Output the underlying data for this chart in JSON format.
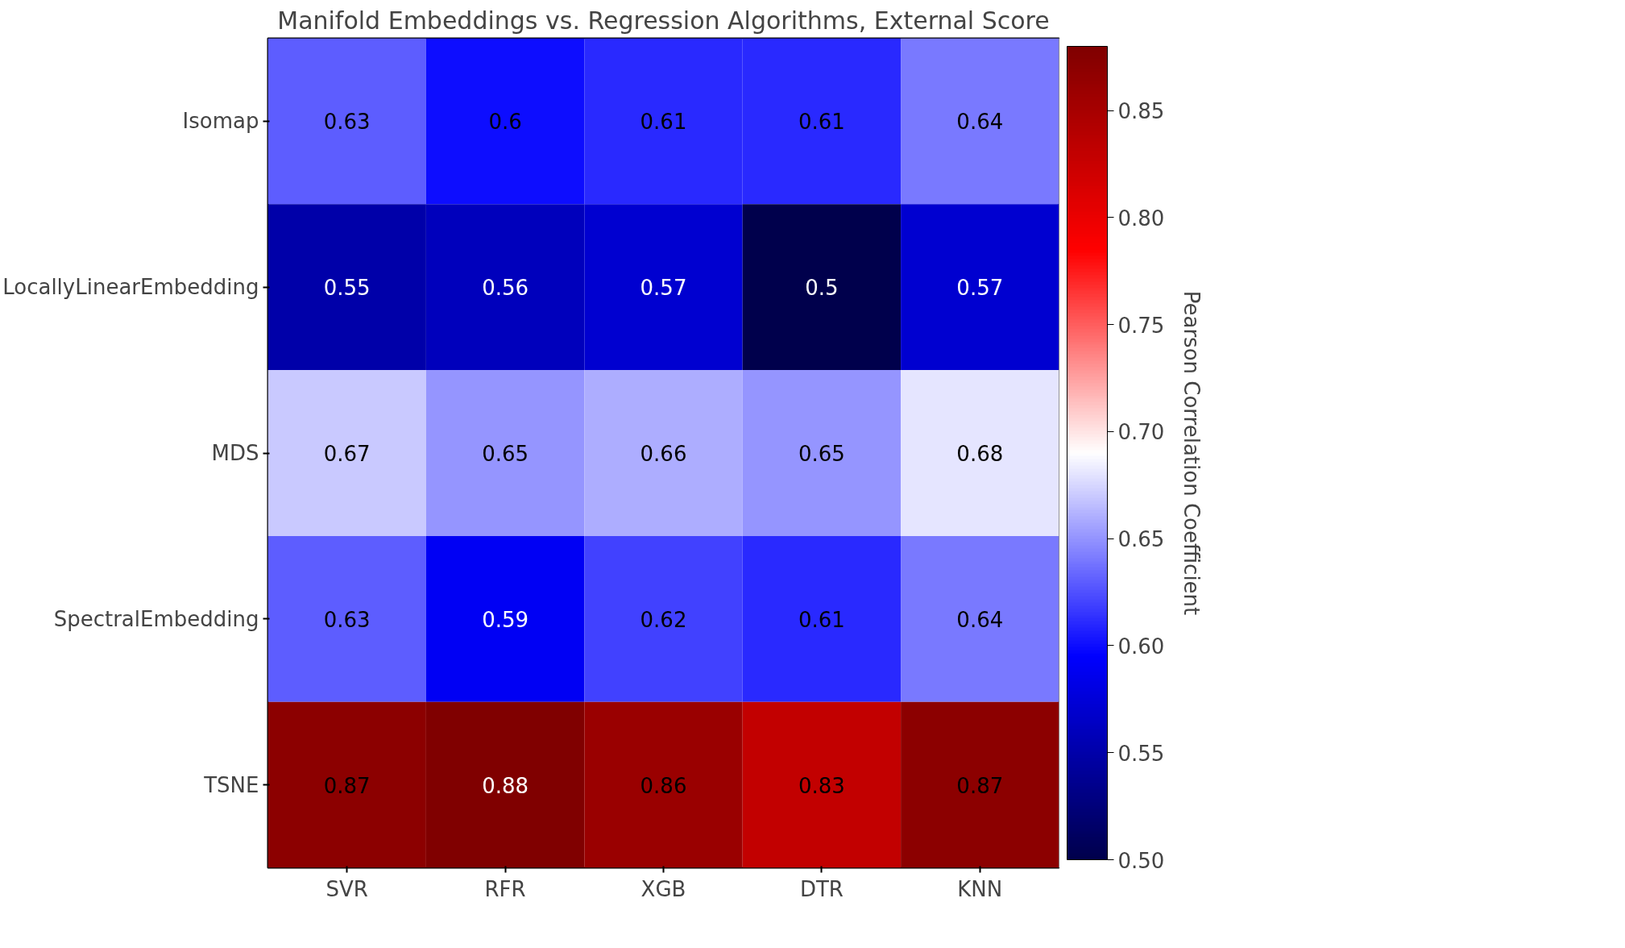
{
  "chart_data": {
    "type": "heatmap",
    "title": "Manifold Embeddings vs. Regression Algorithms, External Score",
    "categories": [
      "SVR",
      "RFR",
      "XGB",
      "DTR",
      "KNN"
    ],
    "y_categories": [
      "Isomap",
      "LocallyLinearEmbedding",
      "MDS",
      "SpectralEmbedding",
      "TSNE"
    ],
    "cells": [
      [
        0.63,
        0.6,
        0.61,
        0.61,
        0.64
      ],
      [
        0.55,
        0.56,
        0.57,
        0.5,
        0.57
      ],
      [
        0.67,
        0.65,
        0.66,
        0.65,
        0.68
      ],
      [
        0.63,
        0.59,
        0.62,
        0.61,
        0.64
      ],
      [
        0.87,
        0.88,
        0.86,
        0.83,
        0.87
      ]
    ],
    "data_labels": true,
    "clabel": "Pearson Correlation Coefficient",
    "clim": [
      0.5,
      0.88
    ],
    "cticks": [
      {
        "value": 0.5,
        "label": "0.50"
      },
      {
        "value": 0.55,
        "label": "0.55"
      },
      {
        "value": 0.6,
        "label": "0.60"
      },
      {
        "value": 0.65,
        "label": "0.65"
      },
      {
        "value": 0.7,
        "label": "0.70"
      },
      {
        "value": 0.75,
        "label": "0.75"
      },
      {
        "value": 0.8,
        "label": "0.80"
      },
      {
        "value": 0.85,
        "label": "0.85"
      }
    ],
    "grid": false
  }
}
